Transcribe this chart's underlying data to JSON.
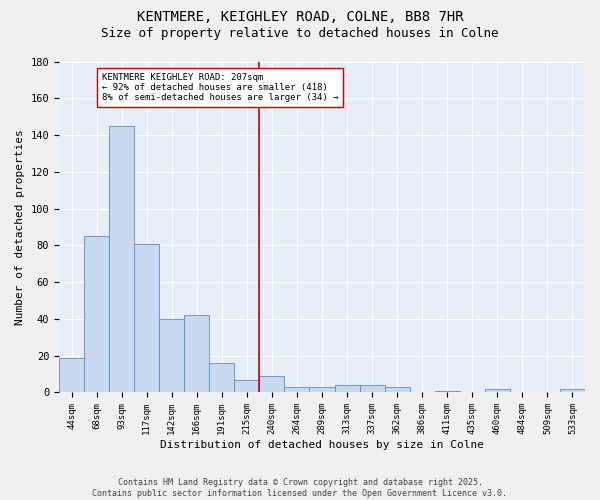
{
  "title": "KENTMERE, KEIGHLEY ROAD, COLNE, BB8 7HR",
  "subtitle": "Size of property relative to detached houses in Colne",
  "xlabel": "Distribution of detached houses by size in Colne",
  "ylabel": "Number of detached properties",
  "bin_labels": [
    "44sqm",
    "68sqm",
    "93sqm",
    "117sqm",
    "142sqm",
    "166sqm",
    "191sqm",
    "215sqm",
    "240sqm",
    "264sqm",
    "289sqm",
    "313sqm",
    "337sqm",
    "362sqm",
    "386sqm",
    "411sqm",
    "435sqm",
    "460sqm",
    "484sqm",
    "509sqm",
    "533sqm"
  ],
  "bar_values": [
    19,
    85,
    145,
    81,
    40,
    42,
    16,
    7,
    9,
    3,
    3,
    4,
    4,
    3,
    0,
    1,
    0,
    2,
    0,
    0,
    2
  ],
  "bar_color": "#c8d9f0",
  "bar_edge_color": "#5b8dbe",
  "vline_x": 7.5,
  "vline_color": "#cc0000",
  "annotation_text": "KENTMERE KEIGHLEY ROAD: 207sqm\n← 92% of detached houses are smaller (418)\n8% of semi-detached houses are larger (34) →",
  "annotation_box_color": "#ffffff",
  "annotation_box_edge": "#cc0000",
  "annotation_fontsize": 6.5,
  "ylim": [
    0,
    180
  ],
  "yticks": [
    0,
    20,
    40,
    60,
    80,
    100,
    120,
    140,
    160,
    180
  ],
  "bg_color": "#e8eef8",
  "fig_bg_color": "#f0f0f0",
  "footer_text": "Contains HM Land Registry data © Crown copyright and database right 2025.\nContains public sector information licensed under the Open Government Licence v3.0.",
  "title_fontsize": 10,
  "subtitle_fontsize": 9,
  "xlabel_fontsize": 8,
  "ylabel_fontsize": 8
}
